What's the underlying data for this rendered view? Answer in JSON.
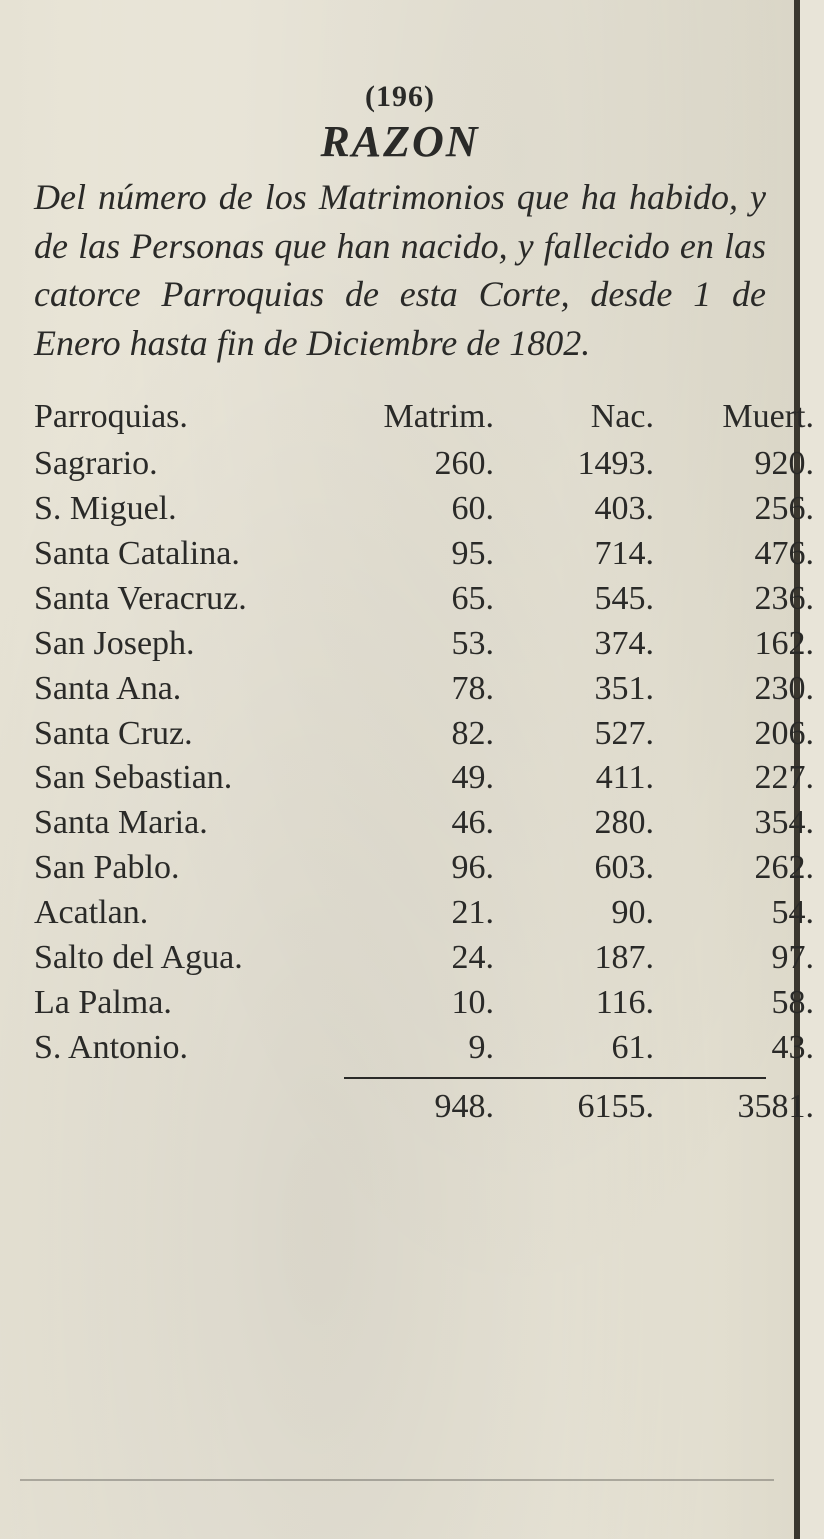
{
  "page_number_display": "(196)",
  "title": "RAZON",
  "intro": "Del número de los Matrimonios que ha habido, y de las Personas que han nacido, y fallecido en las catorce Parroquias de esta Corte, desde 1 de Enero hasta fin de Diciembre de 1802.",
  "headers": {
    "name": "Parroquias.",
    "matrim": "Matrim.",
    "nac": "Nac.",
    "muert": "Muert."
  },
  "rows": [
    {
      "name": "Sagrario.",
      "matrim": "260.",
      "nac": "1493.",
      "muert": "920."
    },
    {
      "name": "S. Miguel.",
      "matrim": "60.",
      "nac": "403.",
      "muert": "256."
    },
    {
      "name": "Santa Catalina.",
      "matrim": "95.",
      "nac": "714.",
      "muert": "476."
    },
    {
      "name": "Santa Veracruz.",
      "matrim": "65.",
      "nac": "545.",
      "muert": "236."
    },
    {
      "name": "San Joseph.",
      "matrim": "53.",
      "nac": "374.",
      "muert": "162."
    },
    {
      "name": "Santa Ana.",
      "matrim": "78.",
      "nac": "351.",
      "muert": "230."
    },
    {
      "name": "Santa Cruz.",
      "matrim": "82.",
      "nac": "527.",
      "muert": "206."
    },
    {
      "name": "San Sebastian.",
      "matrim": "49.",
      "nac": "411.",
      "muert": "227."
    },
    {
      "name": "Santa Maria.",
      "matrim": "46.",
      "nac": "280.",
      "muert": "354."
    },
    {
      "name": "San Pablo.",
      "matrim": "96.",
      "nac": "603.",
      "muert": "262."
    },
    {
      "name": "Acatlan.",
      "matrim": "21.",
      "nac": "90.",
      "muert": "54."
    },
    {
      "name": "Salto del Agua.",
      "matrim": "24.",
      "nac": "187.",
      "muert": "97."
    },
    {
      "name": "La Palma.",
      "matrim": "10.",
      "nac": "116.",
      "muert": "58."
    },
    {
      "name": "S. Antonio.",
      "matrim": "9.",
      "nac": "61.",
      "muert": "43."
    }
  ],
  "totals": {
    "matrim": "948.",
    "nac": "6155.",
    "muert": "3581."
  },
  "bleed_row": [
    "",
    "",
    "",
    "",
    ""
  ],
  "bleed_line": ""
}
